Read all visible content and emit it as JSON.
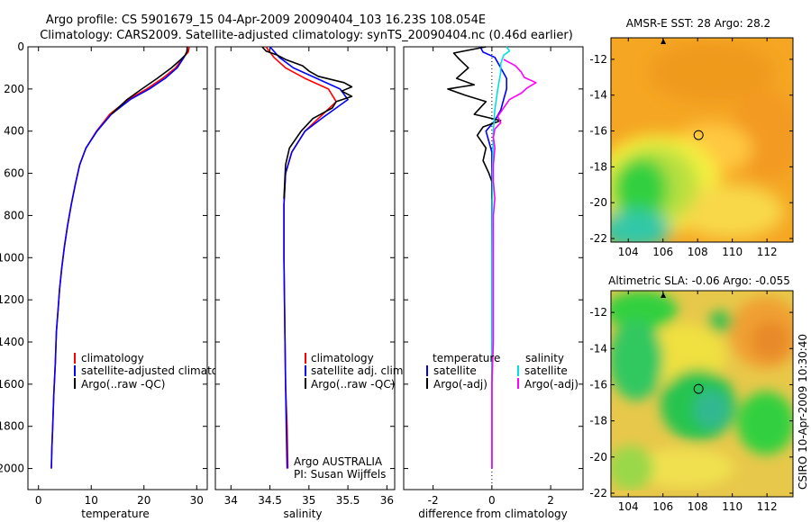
{
  "header": {
    "line1": "Argo profile: CS 5901679_15 04-Apr-2009 20090404_103 16.23S 108.054E",
    "line2": "Climatology: CARS2009. Satellite-adjusted climatology: synTS_20090404.nc (0.46d earlier)"
  },
  "side_text": "CSIRO 10-Apr-2009 10:30:40",
  "colors": {
    "climatology": "#ff0000",
    "satellite": "#0000ff",
    "argo": "#000000",
    "sat_diff": "#00e0e0",
    "sal_diff": "#ff00ff"
  },
  "chart_data": [
    {
      "type": "line",
      "id": "temperature",
      "xlabel": "temperature",
      "xlim": [
        -2,
        32
      ],
      "ylim": [
        0,
        2100
      ],
      "yreversed": true,
      "xticks": [
        0,
        10,
        20,
        30
      ],
      "yticks": [
        0,
        200,
        400,
        600,
        800,
        1000,
        1200,
        1400,
        1600,
        1800,
        2000
      ],
      "legend": [
        "climatology",
        "satellite-adjusted climatology",
        "Argo(..raw -QC)"
      ],
      "series": [
        {
          "name": "climatology",
          "color": "#ff0000",
          "points": [
            [
              28.6,
              0
            ],
            [
              28.4,
              25
            ],
            [
              27.5,
              50
            ],
            [
              26,
              100
            ],
            [
              23.5,
              150
            ],
            [
              20.5,
              200
            ],
            [
              17,
              250
            ],
            [
              13.5,
              320
            ],
            [
              11,
              400
            ],
            [
              9,
              480
            ],
            [
              7.8,
              560
            ],
            [
              7,
              650
            ],
            [
              6.2,
              750
            ],
            [
              5.5,
              850
            ],
            [
              4.9,
              950
            ],
            [
              4.4,
              1050
            ],
            [
              4,
              1150
            ],
            [
              3.7,
              1250
            ],
            [
              3.4,
              1350
            ],
            [
              3.2,
              1500
            ],
            [
              2.9,
              1650
            ],
            [
              2.7,
              1800
            ],
            [
              2.55,
              1900
            ],
            [
              2.45,
              2000
            ]
          ]
        },
        {
          "name": "satellite-adjusted climatology",
          "color": "#0000ff",
          "points": [
            [
              28.2,
              0
            ],
            [
              28.1,
              25
            ],
            [
              27.6,
              50
            ],
            [
              26.3,
              100
            ],
            [
              24,
              150
            ],
            [
              21,
              200
            ],
            [
              17.4,
              250
            ],
            [
              13.8,
              320
            ],
            [
              11.1,
              400
            ],
            [
              9,
              480
            ],
            [
              7.8,
              560
            ],
            [
              7,
              650
            ],
            [
              6.2,
              750
            ],
            [
              5.5,
              850
            ],
            [
              4.9,
              950
            ],
            [
              4.4,
              1050
            ],
            [
              4,
              1150
            ],
            [
              3.7,
              1250
            ],
            [
              3.4,
              1350
            ],
            [
              3.2,
              1500
            ],
            [
              2.9,
              1650
            ],
            [
              2.7,
              1800
            ],
            [
              2.55,
              1900
            ],
            [
              2.45,
              2000
            ]
          ]
        },
        {
          "name": "Argo(..raw -QC)",
          "color": "#000000",
          "points": [
            [
              28.2,
              0
            ],
            [
              28.2,
              20
            ],
            [
              27.8,
              40
            ],
            [
              27,
              60
            ],
            [
              25.2,
              100
            ],
            [
              22.5,
              150
            ],
            [
              19.6,
              200
            ],
            [
              16.8,
              250
            ],
            [
              13.8,
              320
            ]
          ]
        }
      ],
      "annotations": []
    },
    {
      "type": "line",
      "id": "salinity",
      "xlabel": "salinity",
      "xlim": [
        33.8,
        36.1
      ],
      "ylim": [
        0,
        2100
      ],
      "yreversed": true,
      "xticks": [
        34,
        34.5,
        35,
        35.5,
        36
      ],
      "legend": [
        "climatology",
        "satellite adj. clim.",
        "Argo(..raw -QC)"
      ],
      "series": [
        {
          "name": "climatology",
          "color": "#ff0000",
          "points": [
            [
              34.45,
              0
            ],
            [
              34.55,
              50
            ],
            [
              34.7,
              100
            ],
            [
              34.95,
              150
            ],
            [
              35.25,
              200
            ],
            [
              35.35,
              260
            ],
            [
              35.15,
              330
            ],
            [
              34.95,
              400
            ],
            [
              34.78,
              500
            ],
            [
              34.7,
              600
            ],
            [
              34.68,
              750
            ],
            [
              34.68,
              1000
            ],
            [
              34.69,
              1300
            ],
            [
              34.7,
              1600
            ],
            [
              34.72,
              1800
            ],
            [
              34.73,
              2000
            ]
          ]
        },
        {
          "name": "satellite adj. clim.",
          "color": "#0000ff",
          "points": [
            [
              34.5,
              0
            ],
            [
              34.62,
              50
            ],
            [
              34.8,
              100
            ],
            [
              35.1,
              150
            ],
            [
              35.4,
              200
            ],
            [
              35.5,
              250
            ],
            [
              35.2,
              330
            ],
            [
              34.95,
              400
            ],
            [
              34.78,
              500
            ],
            [
              34.7,
              600
            ],
            [
              34.68,
              750
            ],
            [
              34.68,
              1000
            ],
            [
              34.69,
              1300
            ],
            [
              34.7,
              1600
            ],
            [
              34.71,
              1800
            ],
            [
              34.72,
              2000
            ]
          ]
        },
        {
          "name": "Argo(..raw -QC)",
          "color": "#000000",
          "points": [
            [
              34.4,
              0
            ],
            [
              34.45,
              20
            ],
            [
              34.6,
              40
            ],
            [
              34.7,
              60
            ],
            [
              34.92,
              90
            ],
            [
              35.0,
              115
            ],
            [
              35.12,
              140
            ],
            [
              35.45,
              170
            ],
            [
              35.55,
              190
            ],
            [
              35.42,
              210
            ],
            [
              35.55,
              235
            ],
            [
              35.35,
              260
            ],
            [
              35.3,
              290
            ],
            [
              35.05,
              340
            ],
            [
              34.9,
              400
            ],
            [
              34.75,
              480
            ],
            [
              34.7,
              560
            ],
            [
              34.69,
              640
            ],
            [
              34.68,
              720
            ]
          ]
        }
      ],
      "annotations": [
        "Argo AUSTRALIA",
        "PI: Susan Wijffels"
      ]
    },
    {
      "type": "line",
      "id": "difference",
      "xlabel": "difference from climatology",
      "xlim": [
        -3,
        3.1
      ],
      "ylim": [
        0,
        2100
      ],
      "yreversed": true,
      "xticks": [
        -2,
        0,
        2
      ],
      "legend_groups": [
        {
          "title": "temperature",
          "items": [
            "satellite",
            "Argo(-adj)"
          ]
        },
        {
          "title": "salinity",
          "items": [
            "satellite",
            "Argo(-adj)"
          ]
        }
      ],
      "series": [
        {
          "name": "temperature satellite",
          "color": "#0000ff",
          "points": [
            [
              -0.4,
              0
            ],
            [
              -0.3,
              25
            ],
            [
              0.1,
              50
            ],
            [
              0.3,
              100
            ],
            [
              0.5,
              150
            ],
            [
              0.5,
              200
            ],
            [
              0.4,
              250
            ],
            [
              0.3,
              300
            ],
            [
              0.1,
              350
            ],
            [
              -0.2,
              400
            ],
            [
              -0.1,
              450
            ],
            [
              0,
              500
            ],
            [
              0,
              800
            ],
            [
              0,
              1400
            ],
            [
              0,
              2000
            ]
          ]
        },
        {
          "name": "temperature Argo(-adj)",
          "color": "#000000",
          "points": [
            [
              -0.2,
              0
            ],
            [
              -1.3,
              30
            ],
            [
              -1.1,
              60
            ],
            [
              -0.8,
              100
            ],
            [
              -1.2,
              150
            ],
            [
              -0.6,
              180
            ],
            [
              -1.5,
              200
            ],
            [
              -0.9,
              230
            ],
            [
              -0.2,
              260
            ],
            [
              -0.4,
              290
            ],
            [
              -0.6,
              320
            ],
            [
              0.3,
              350
            ],
            [
              -0.3,
              380
            ],
            [
              -0.5,
              420
            ],
            [
              -0.2,
              480
            ],
            [
              -0.3,
              540
            ],
            [
              -0.1,
              600
            ],
            [
              0,
              640
            ],
            [
              0,
              720
            ]
          ]
        },
        {
          "name": "salinity satellite",
          "color": "#00e0e0",
          "points": [
            [
              0.5,
              0
            ],
            [
              0.6,
              20
            ],
            [
              0.4,
              40
            ],
            [
              0.3,
              80
            ],
            [
              0.3,
              120
            ],
            [
              0.2,
              200
            ],
            [
              0.1,
              300
            ],
            [
              0.05,
              400
            ],
            [
              0.02,
              600
            ],
            [
              0,
              1000
            ],
            [
              0,
              1400
            ],
            [
              0,
              2000
            ]
          ]
        },
        {
          "name": "salinity Argo(-adj)",
          "color": "#ff00ff",
          "points": [
            [
              0.4,
              60
            ],
            [
              0.8,
              90
            ],
            [
              1.0,
              120
            ],
            [
              1.1,
              145
            ],
            [
              1.5,
              170
            ],
            [
              1.2,
              195
            ],
            [
              1.0,
              220
            ],
            [
              0.6,
              250
            ],
            [
              0.4,
              290
            ],
            [
              0.2,
              330
            ],
            [
              0.3,
              360
            ],
            [
              0.1,
              390
            ],
            [
              0.05,
              430
            ],
            [
              0.1,
              480
            ],
            [
              0.05,
              560
            ],
            [
              0.05,
              640
            ],
            [
              0.1,
              720
            ],
            [
              0.05,
              800
            ],
            [
              0.05,
              1000
            ],
            [
              0.05,
              1200
            ],
            [
              0.05,
              1400
            ],
            [
              0,
              1600
            ],
            [
              0,
              1800
            ],
            [
              0,
              2000
            ]
          ]
        }
      ],
      "annotations": []
    },
    {
      "type": "heatmap",
      "id": "sst_map",
      "title": "AMSR-E SST: 28 Argo: 28.2",
      "xlim": [
        103,
        113.5
      ],
      "ylim": [
        -22.2,
        -10.8
      ],
      "xticks": [
        104,
        106,
        108,
        110,
        112
      ],
      "yticks": [
        -12,
        -14,
        -16,
        -18,
        -20,
        -22
      ],
      "marker": [
        108.054,
        -16.23
      ]
    },
    {
      "type": "heatmap",
      "id": "sla_map",
      "title": "Altimetric SLA: -0.06 Argo: -0.055",
      "xlim": [
        103,
        113.5
      ],
      "ylim": [
        -22.2,
        -10.8
      ],
      "xticks": [
        104,
        106,
        108,
        110,
        112
      ],
      "yticks": [
        -12,
        -14,
        -16,
        -18,
        -20,
        -22
      ],
      "marker": [
        108.054,
        -16.23
      ]
    }
  ]
}
